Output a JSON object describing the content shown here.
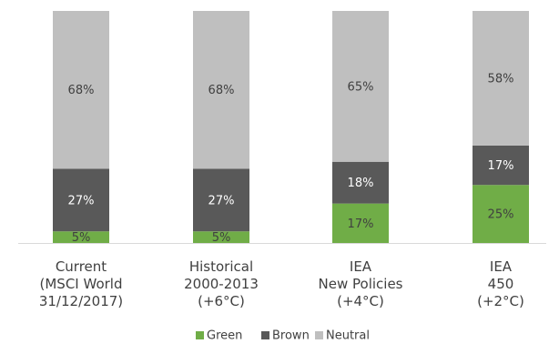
{
  "chart_data": {
    "type": "bar",
    "stacked": true,
    "percent_stacked": true,
    "categories": [
      [
        "Current",
        "(MSCI World",
        "31/12/2017)"
      ],
      [
        "Historical",
        "2000-2013",
        "(+6°C)"
      ],
      [
        "IEA",
        "New Policies",
        "(+4°C)"
      ],
      [
        "IEA",
        "450",
        "(+2°C)"
      ]
    ],
    "series": [
      {
        "name": "Green",
        "color": "#70ad47",
        "values": [
          5,
          5,
          17,
          25
        ],
        "labels": [
          "5%",
          "5%",
          "17%",
          "25%"
        ],
        "label_color": "#404040"
      },
      {
        "name": "Brown",
        "color": "#595959",
        "values": [
          27,
          27,
          18,
          17
        ],
        "labels": [
          "27%",
          "27%",
          "18%",
          "17%"
        ],
        "label_color": "#ffffff"
      },
      {
        "name": "Neutral",
        "color": "#bfbfbf",
        "values": [
          68,
          68,
          65,
          58
        ],
        "labels": [
          "68%",
          "68%",
          "65%",
          "58%"
        ],
        "label_color": "#404040"
      }
    ],
    "ylim": [
      0,
      100
    ],
    "gridlines": false,
    "legend_position": "bottom"
  }
}
